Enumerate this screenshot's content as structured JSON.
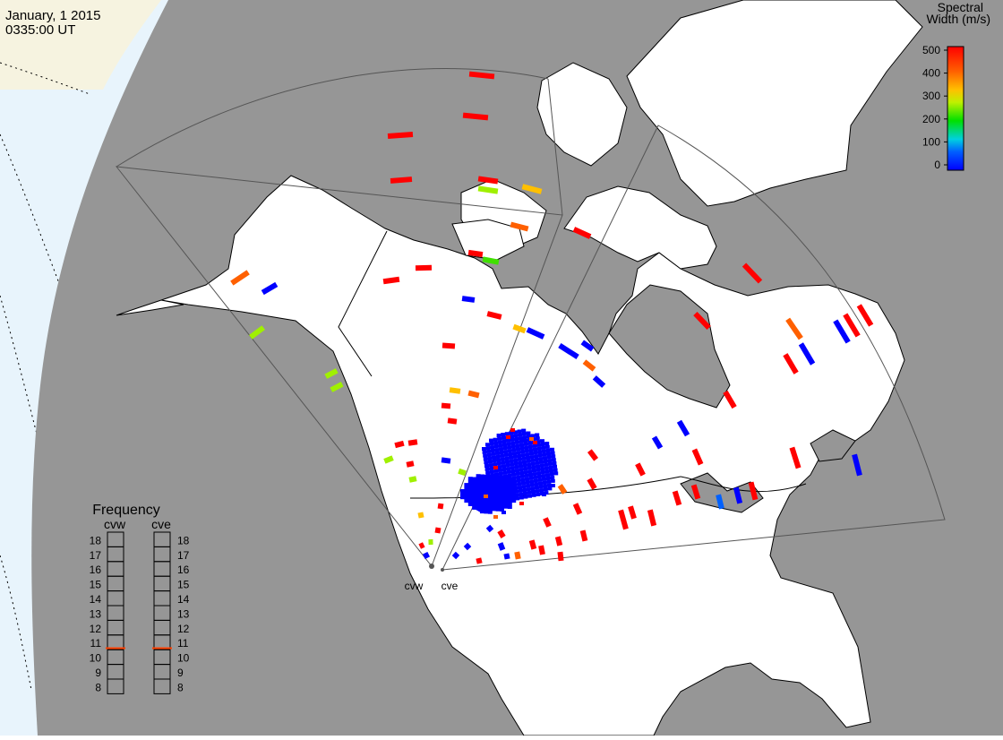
{
  "header": {
    "date": "January, 1 2015",
    "time": "0335:00 UT"
  },
  "colorbar": {
    "title_line1": "Spectral",
    "title_line2": "Width (m/s)",
    "ticks": [
      "500",
      "400",
      "300",
      "200",
      "100",
      "0"
    ],
    "range": [
      0,
      500
    ],
    "colors": [
      "#0000ff",
      "#00a0ff",
      "#00e0c0",
      "#00e000",
      "#a0f000",
      "#f0e000",
      "#ff8000",
      "#ff0000"
    ]
  },
  "frequency_panel": {
    "title": "Frequency",
    "columns": [
      {
        "label": "cvw",
        "value": 10.6
      },
      {
        "label": "cve",
        "value": 10.6
      }
    ],
    "ticks": [
      "18",
      "17",
      "16",
      "15",
      "14",
      "13",
      "12",
      "11",
      "10",
      "9",
      "8"
    ],
    "range": [
      8,
      18
    ],
    "marker_color": "#ff4000"
  },
  "radars": [
    {
      "label": "cvw"
    },
    {
      "label": "cve"
    }
  ],
  "colors": {
    "ocean_gray": "#969696",
    "space_blue": "#e8f4fc",
    "land_white": "#ffffff",
    "arctic_cream": "#f6f3e0"
  }
}
